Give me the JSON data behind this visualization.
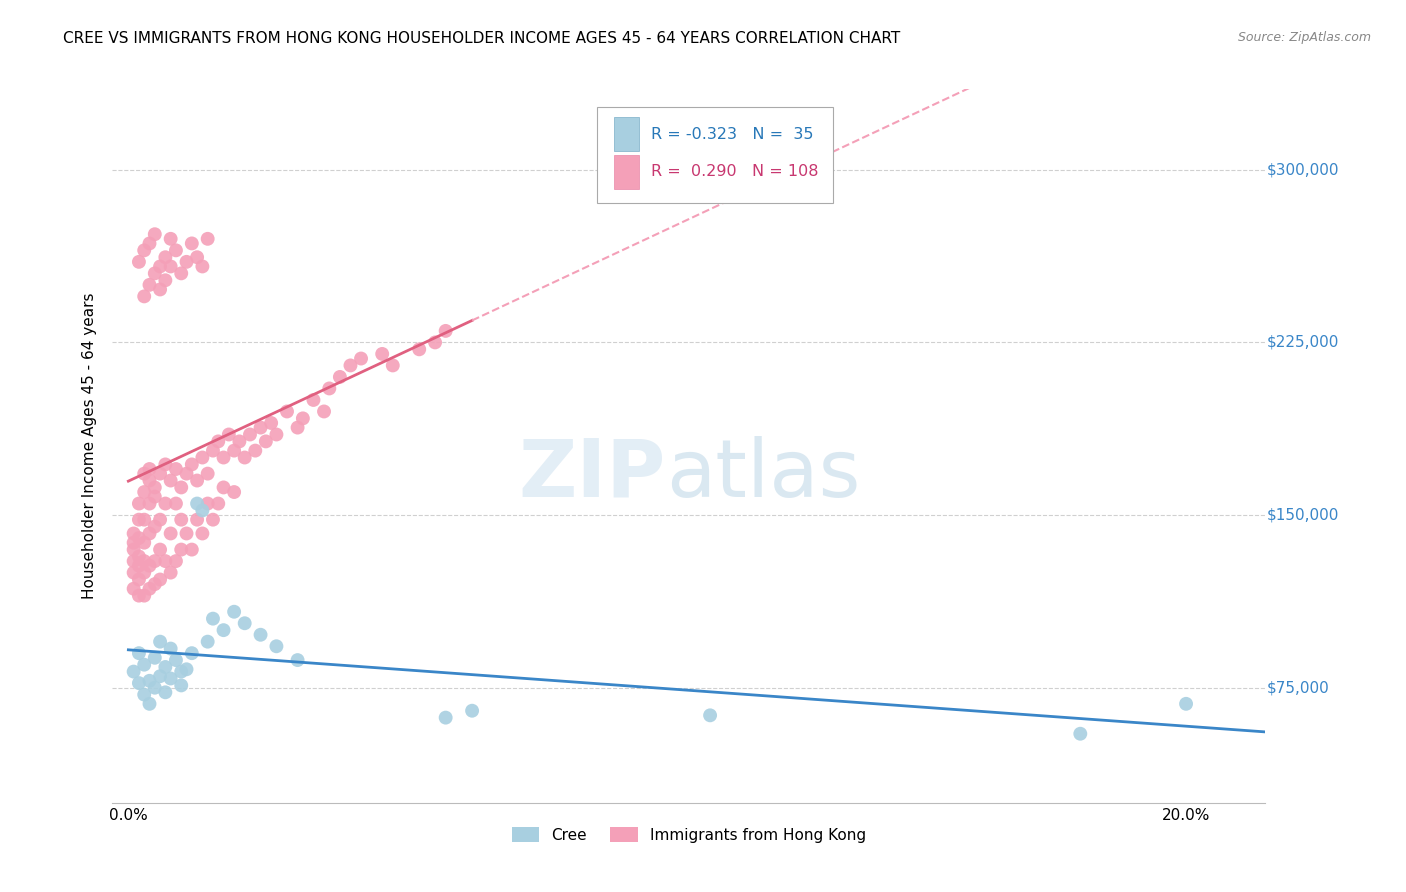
{
  "title": "CREE VS IMMIGRANTS FROM HONG KONG HOUSEHOLDER INCOME AGES 45 - 64 YEARS CORRELATION CHART",
  "source": "Source: ZipAtlas.com",
  "ylabel": "Householder Income Ages 45 - 64 years",
  "xlabel_ticks": [
    "0.0%",
    "20.0%"
  ],
  "xlabel_tick_vals": [
    0.0,
    0.2
  ],
  "ytick_labels": [
    "$75,000",
    "$150,000",
    "$225,000",
    "$300,000"
  ],
  "ytick_vals": [
    75000,
    150000,
    225000,
    300000
  ],
  "xlim": [
    -0.003,
    0.215
  ],
  "ylim": [
    25000,
    335000
  ],
  "blue_color": "#a8cfe0",
  "blue_line_color": "#3a86c8",
  "pink_color": "#f4a0b8",
  "pink_line_solid_color": "#e06080",
  "pink_line_dashed_color": "#f4a0b8",
  "background_color": "#ffffff",
  "grid_color": "#d0d0d0",
  "cree_scatter_x": [
    0.001,
    0.002,
    0.002,
    0.003,
    0.003,
    0.004,
    0.004,
    0.005,
    0.005,
    0.006,
    0.006,
    0.007,
    0.007,
    0.008,
    0.008,
    0.009,
    0.01,
    0.01,
    0.011,
    0.012,
    0.013,
    0.014,
    0.015,
    0.016,
    0.018,
    0.02,
    0.022,
    0.025,
    0.028,
    0.032,
    0.06,
    0.065,
    0.11,
    0.18,
    0.2
  ],
  "cree_scatter_y": [
    82000,
    77000,
    90000,
    72000,
    85000,
    68000,
    78000,
    75000,
    88000,
    80000,
    95000,
    73000,
    84000,
    79000,
    92000,
    87000,
    82000,
    76000,
    83000,
    90000,
    155000,
    152000,
    95000,
    105000,
    100000,
    108000,
    103000,
    98000,
    93000,
    87000,
    62000,
    65000,
    63000,
    55000,
    68000
  ],
  "hk_scatter_x": [
    0.001,
    0.001,
    0.001,
    0.001,
    0.001,
    0.001,
    0.002,
    0.002,
    0.002,
    0.002,
    0.002,
    0.002,
    0.002,
    0.003,
    0.003,
    0.003,
    0.003,
    0.003,
    0.003,
    0.003,
    0.004,
    0.004,
    0.004,
    0.004,
    0.004,
    0.004,
    0.005,
    0.005,
    0.005,
    0.005,
    0.005,
    0.006,
    0.006,
    0.006,
    0.006,
    0.007,
    0.007,
    0.007,
    0.008,
    0.008,
    0.008,
    0.009,
    0.009,
    0.009,
    0.01,
    0.01,
    0.01,
    0.011,
    0.011,
    0.012,
    0.012,
    0.013,
    0.013,
    0.014,
    0.014,
    0.015,
    0.015,
    0.016,
    0.016,
    0.017,
    0.017,
    0.018,
    0.018,
    0.019,
    0.02,
    0.02,
    0.021,
    0.022,
    0.023,
    0.024,
    0.025,
    0.026,
    0.027,
    0.028,
    0.03,
    0.032,
    0.033,
    0.035,
    0.037,
    0.038,
    0.04,
    0.042,
    0.044,
    0.048,
    0.05,
    0.055,
    0.058,
    0.06,
    0.002,
    0.003,
    0.004,
    0.005,
    0.006,
    0.007,
    0.008,
    0.009,
    0.01,
    0.011,
    0.012,
    0.013,
    0.014,
    0.015,
    0.003,
    0.004,
    0.005,
    0.006,
    0.007,
    0.008
  ],
  "hk_scatter_y": [
    130000,
    138000,
    125000,
    142000,
    118000,
    135000,
    140000,
    128000,
    148000,
    122000,
    155000,
    132000,
    115000,
    160000,
    138000,
    125000,
    148000,
    168000,
    115000,
    130000,
    165000,
    142000,
    128000,
    155000,
    118000,
    170000,
    162000,
    145000,
    130000,
    158000,
    120000,
    168000,
    148000,
    135000,
    122000,
    172000,
    155000,
    130000,
    165000,
    142000,
    125000,
    170000,
    155000,
    130000,
    162000,
    148000,
    135000,
    168000,
    142000,
    172000,
    135000,
    165000,
    148000,
    175000,
    142000,
    168000,
    155000,
    178000,
    148000,
    182000,
    155000,
    175000,
    162000,
    185000,
    178000,
    160000,
    182000,
    175000,
    185000,
    178000,
    188000,
    182000,
    190000,
    185000,
    195000,
    188000,
    192000,
    200000,
    195000,
    205000,
    210000,
    215000,
    218000,
    220000,
    215000,
    222000,
    225000,
    230000,
    260000,
    265000,
    268000,
    272000,
    258000,
    262000,
    270000,
    265000,
    255000,
    260000,
    268000,
    262000,
    258000,
    270000,
    245000,
    250000,
    255000,
    248000,
    252000,
    258000
  ]
}
